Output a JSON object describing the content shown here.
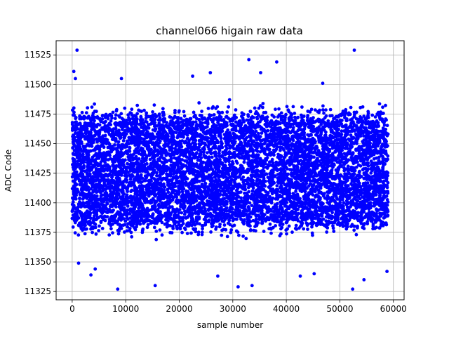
{
  "chart_data": {
    "type": "scatter",
    "title": "channel066 higain raw data",
    "xlabel": "sample number",
    "ylabel": "ADC Code",
    "xlim": [
      -3000,
      62000
    ],
    "ylim": [
      11318,
      11537
    ],
    "x_ticks": [
      0,
      10000,
      20000,
      30000,
      40000,
      50000,
      60000
    ],
    "x_tick_labels": [
      "0",
      "10000",
      "20000",
      "30000",
      "40000",
      "50000",
      "60000"
    ],
    "y_ticks": [
      11325,
      11350,
      11375,
      11400,
      11425,
      11450,
      11475,
      11500,
      11525
    ],
    "y_tick_labels": [
      "11325",
      "11350",
      "11375",
      "11400",
      "11425",
      "11450",
      "11475",
      "11500",
      "11525"
    ],
    "grid": true,
    "marker_color": "#0000ff",
    "x_range": [
      0,
      59000
    ],
    "dense_band": [
      11387,
      11467
    ],
    "outliers": [
      {
        "x": 900,
        "y": 11529
      },
      {
        "x": 300,
        "y": 11511
      },
      {
        "x": 600,
        "y": 11505
      },
      {
        "x": 33000,
        "y": 11521
      },
      {
        "x": 38200,
        "y": 11519
      },
      {
        "x": 52700,
        "y": 11529
      },
      {
        "x": 25800,
        "y": 11510
      },
      {
        "x": 22500,
        "y": 11507
      },
      {
        "x": 9200,
        "y": 11505
      },
      {
        "x": 46800,
        "y": 11501
      },
      {
        "x": 35200,
        "y": 11510
      },
      {
        "x": 8500,
        "y": 11327
      },
      {
        "x": 15500,
        "y": 11330
      },
      {
        "x": 31000,
        "y": 11329
      },
      {
        "x": 33600,
        "y": 11330
      },
      {
        "x": 52400,
        "y": 11327
      },
      {
        "x": 54500,
        "y": 11335
      },
      {
        "x": 3500,
        "y": 11339
      },
      {
        "x": 4300,
        "y": 11344
      },
      {
        "x": 27200,
        "y": 11338
      },
      {
        "x": 42600,
        "y": 11338
      },
      {
        "x": 45200,
        "y": 11340
      },
      {
        "x": 58800,
        "y": 11342
      },
      {
        "x": 1200,
        "y": 11349
      }
    ]
  }
}
